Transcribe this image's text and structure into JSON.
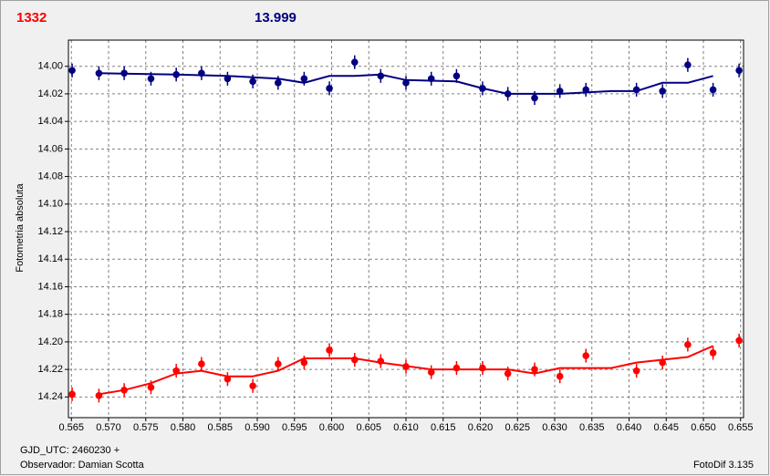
{
  "chart_data": {
    "type": "scatter",
    "header_left": "1332",
    "header_left_color": "#ff0000",
    "header_right": "13.999",
    "header_right_color": "#000080",
    "y_label": "Fotometria absoluta",
    "footer_date": "GJD_UTC: 2460230 +",
    "footer_observer": "Observador: Damian Scotta",
    "footer_software": "FotoDif 3.135",
    "xlim": [
      0.5646,
      0.6554
    ],
    "ylim": [
      13.981,
      14.255
    ],
    "y_inverted": true,
    "grid": true,
    "xticks": [
      {
        "value": 0.565,
        "label": "0.565"
      },
      {
        "value": 0.57,
        "label": "0.570"
      },
      {
        "value": 0.575,
        "label": "0.575"
      },
      {
        "value": 0.58,
        "label": "0.580"
      },
      {
        "value": 0.585,
        "label": "0.585"
      },
      {
        "value": 0.59,
        "label": "0.590"
      },
      {
        "value": 0.595,
        "label": "0.595"
      },
      {
        "value": 0.6,
        "label": "0.600"
      },
      {
        "value": 0.605,
        "label": "0.605"
      },
      {
        "value": 0.61,
        "label": "0.610"
      },
      {
        "value": 0.615,
        "label": "0.615"
      },
      {
        "value": 0.62,
        "label": "0.620"
      },
      {
        "value": 0.625,
        "label": "0.625"
      },
      {
        "value": 0.63,
        "label": "0.630"
      },
      {
        "value": 0.635,
        "label": "0.635"
      },
      {
        "value": 0.64,
        "label": "0.640"
      },
      {
        "value": 0.645,
        "label": "0.645"
      },
      {
        "value": 0.65,
        "label": "0.650"
      },
      {
        "value": 0.655,
        "label": "0.655"
      }
    ],
    "yticks": [
      {
        "value": 14.0,
        "label": "14.00"
      },
      {
        "value": 14.02,
        "label": "14.02"
      },
      {
        "value": 14.04,
        "label": "14.04"
      },
      {
        "value": 14.06,
        "label": "14.06"
      },
      {
        "value": 14.08,
        "label": "14.08"
      },
      {
        "value": 14.1,
        "label": "14.10"
      },
      {
        "value": 14.12,
        "label": "14.12"
      },
      {
        "value": 14.14,
        "label": "14.14"
      },
      {
        "value": 14.16,
        "label": "14.16"
      },
      {
        "value": 14.18,
        "label": "14.18"
      },
      {
        "value": 14.2,
        "label": "14.20"
      },
      {
        "value": 14.22,
        "label": "14.22"
      },
      {
        "value": 14.24,
        "label": "14.24"
      }
    ],
    "series": [
      {
        "color": "#000080",
        "error": 0.005,
        "x": [
          0.5651,
          0.5687,
          0.5721,
          0.5757,
          0.5791,
          0.5825,
          0.586,
          0.5894,
          0.5928,
          0.5963,
          0.5997,
          0.6031,
          0.6066,
          0.61,
          0.6134,
          0.6168,
          0.6203,
          0.6237,
          0.6273,
          0.6307,
          0.6342,
          0.641,
          0.6445,
          0.6479,
          0.6513,
          0.6548
        ],
        "values": [
          14.003,
          14.005,
          14.005,
          14.009,
          14.006,
          14.005,
          14.009,
          14.011,
          14.012,
          14.009,
          14.016,
          13.997,
          14.007,
          14.012,
          14.009,
          14.007,
          14.016,
          14.02,
          14.023,
          14.018,
          14.017,
          14.017,
          14.018,
          13.999,
          14.017,
          14.003
        ],
        "fit": {
          "x": [
            0.5687,
            0.5791,
            0.586,
            0.5894,
            0.5928,
            0.5963,
            0.5997,
            0.6031,
            0.6066,
            0.61,
            0.6168,
            0.6203,
            0.6237,
            0.6307,
            0.6376,
            0.641,
            0.6445,
            0.6479,
            0.6513
          ],
          "values": [
            14.005,
            14.006,
            14.007,
            14.008,
            14.009,
            14.012,
            14.007,
            14.007,
            14.006,
            14.01,
            14.011,
            14.016,
            14.02,
            14.02,
            14.018,
            14.018,
            14.012,
            14.012,
            14.007
          ]
        }
      },
      {
        "color": "#ff0000",
        "error": 0.005,
        "x": [
          0.5651,
          0.5687,
          0.5721,
          0.5757,
          0.5791,
          0.5825,
          0.586,
          0.5894,
          0.5928,
          0.5963,
          0.5997,
          0.6031,
          0.6066,
          0.61,
          0.6134,
          0.6168,
          0.6203,
          0.6237,
          0.6273,
          0.6307,
          0.6342,
          0.641,
          0.6445,
          0.6479,
          0.6513,
          0.6548
        ],
        "values": [
          14.238,
          14.239,
          14.235,
          14.233,
          14.221,
          14.216,
          14.227,
          14.232,
          14.216,
          14.215,
          14.206,
          14.213,
          14.214,
          14.218,
          14.222,
          14.219,
          14.219,
          14.223,
          14.22,
          14.225,
          14.21,
          14.221,
          14.215,
          14.202,
          14.208,
          14.199
        ],
        "fit": {
          "x": [
            0.5687,
            0.5721,
            0.5757,
            0.5791,
            0.5825,
            0.586,
            0.5894,
            0.5928,
            0.5963,
            0.6031,
            0.6066,
            0.6134,
            0.6237,
            0.6273,
            0.6307,
            0.6376,
            0.641,
            0.6479,
            0.6513
          ],
          "values": [
            14.238,
            14.235,
            14.23,
            14.223,
            14.221,
            14.225,
            14.225,
            14.221,
            14.212,
            14.212,
            14.215,
            14.22,
            14.22,
            14.223,
            14.219,
            14.219,
            14.215,
            14.211,
            14.203
          ]
        }
      }
    ]
  }
}
